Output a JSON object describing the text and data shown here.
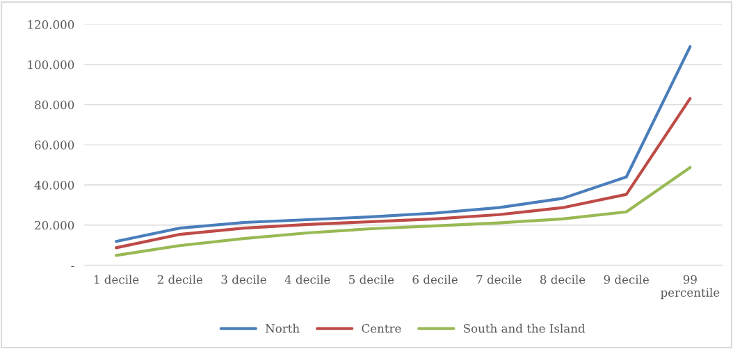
{
  "chart_data": {
    "type": "line",
    "categories": [
      "1 decile",
      "2 decile",
      "3 decile",
      "4 decile",
      "5 decile",
      "6 decile",
      "7 decile",
      "8 decile",
      "9 decile",
      "99\npercentile"
    ],
    "series": [
      {
        "name": "North",
        "color": "#4a7ebb",
        "values": [
          11900,
          18500,
          21300,
          22700,
          24100,
          26000,
          28700,
          33300,
          44000,
          108900
        ]
      },
      {
        "name": "Centre",
        "color": "#be4b48",
        "values": [
          8700,
          15400,
          18500,
          20300,
          21700,
          23100,
          25200,
          28700,
          35300,
          83100
        ]
      },
      {
        "name": "South and the Island",
        "color": "#98b954",
        "values": [
          4900,
          9800,
          13300,
          16100,
          18200,
          19600,
          21100,
          23100,
          26600,
          48700
        ]
      }
    ],
    "ylim": [
      0,
      120000
    ],
    "yticks": [
      {
        "value": 0,
        "label": "-"
      },
      {
        "value": 20000,
        "label": "20.000"
      },
      {
        "value": 40000,
        "label": "40.000"
      },
      {
        "value": 60000,
        "label": "60.000"
      },
      {
        "value": 80000,
        "label": "80.000"
      },
      {
        "value": 100000,
        "label": "100.000"
      },
      {
        "value": 120000,
        "label": "120.000"
      }
    ],
    "grid": "y",
    "legend": "bottom",
    "marker": "none",
    "line_style": "solid"
  }
}
